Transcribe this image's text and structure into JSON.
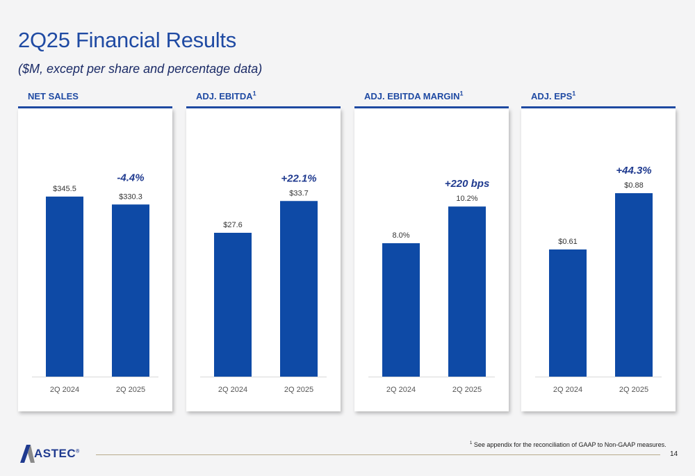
{
  "title": "2Q25 Financial Results",
  "subtitle": "($M, except per share and percentage data)",
  "footnote": {
    "marker": "1",
    "text": " See appendix for the reconciliation of GAAP to Non-GAAP measures."
  },
  "page_number": "14",
  "logo": {
    "text": "ASTEC",
    "trademark": "®"
  },
  "colors": {
    "accent": "#1f4aa3",
    "bar": "#0e4aa6"
  },
  "chart_data": [
    {
      "type": "bar",
      "title": "NET SALES",
      "title_sup": "",
      "categories": [
        "2Q 2024",
        "2Q 2025"
      ],
      "values": [
        345.5,
        330.3
      ],
      "value_labels": [
        "$345.5",
        "$330.3"
      ],
      "change_label": "-4.4%",
      "ylim": [
        0,
        400
      ]
    },
    {
      "type": "bar",
      "title": "ADJ. EBITDA",
      "title_sup": "1",
      "categories": [
        "2Q 2024",
        "2Q 2025"
      ],
      "values": [
        27.6,
        33.7
      ],
      "value_labels": [
        "$27.6",
        "$33.7"
      ],
      "change_label": "+22.1%",
      "ylim": [
        0,
        40
      ]
    },
    {
      "type": "bar",
      "title": "ADJ. EBITDA MARGIN",
      "title_sup": "1",
      "categories": [
        "2Q 2024",
        "2Q 2025"
      ],
      "values": [
        8.0,
        10.2
      ],
      "value_labels": [
        "8.0%",
        "10.2%"
      ],
      "change_label": "+220 bps",
      "ylim": [
        0,
        12.5
      ]
    },
    {
      "type": "bar",
      "title": "ADJ. EPS",
      "title_sup": "1",
      "categories": [
        "2Q 2024",
        "2Q 2025"
      ],
      "values": [
        0.61,
        0.88
      ],
      "value_labels": [
        "$0.61",
        "$0.88"
      ],
      "change_label": "+44.3%",
      "ylim": [
        0,
        1.0
      ]
    }
  ]
}
